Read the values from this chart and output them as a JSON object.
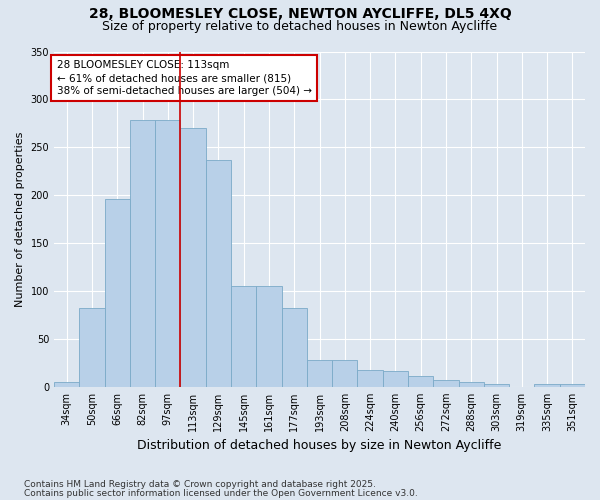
{
  "title_line1": "28, BLOOMESLEY CLOSE, NEWTON AYCLIFFE, DL5 4XQ",
  "title_line2": "Size of property relative to detached houses in Newton Aycliffe",
  "xlabel": "Distribution of detached houses by size in Newton Aycliffe",
  "ylabel": "Number of detached properties",
  "bin_labels": [
    "34sqm",
    "50sqm",
    "66sqm",
    "82sqm",
    "97sqm",
    "113sqm",
    "129sqm",
    "145sqm",
    "161sqm",
    "177sqm",
    "193sqm",
    "208sqm",
    "224sqm",
    "240sqm",
    "256sqm",
    "272sqm",
    "288sqm",
    "303sqm",
    "319sqm",
    "335sqm",
    "351sqm"
  ],
  "bar_heights": [
    5,
    82,
    196,
    278,
    278,
    270,
    237,
    105,
    105,
    82,
    28,
    28,
    18,
    16,
    11,
    7,
    5,
    3,
    0,
    3,
    3
  ],
  "bar_color": "#b8d0e8",
  "bar_edge_color": "#7aaac8",
  "vline_index": 5,
  "vline_color": "#cc0000",
  "annotation_text": "28 BLOOMESLEY CLOSE: 113sqm\n← 61% of detached houses are smaller (815)\n38% of semi-detached houses are larger (504) →",
  "annotation_box_edgecolor": "#cc0000",
  "annotation_bg": "#ffffff",
  "ylim": [
    0,
    350
  ],
  "yticks": [
    0,
    50,
    100,
    150,
    200,
    250,
    300,
    350
  ],
  "xlim_left": -0.5,
  "background_color": "#dde6f0",
  "plot_bg_color": "#dde6f0",
  "footer_line1": "Contains HM Land Registry data © Crown copyright and database right 2025.",
  "footer_line2": "Contains public sector information licensed under the Open Government Licence v3.0.",
  "title_fontsize": 10,
  "subtitle_fontsize": 9,
  "ylabel_fontsize": 8,
  "xlabel_fontsize": 9,
  "tick_fontsize": 7,
  "annotation_fontsize": 7.5,
  "footer_fontsize": 6.5
}
